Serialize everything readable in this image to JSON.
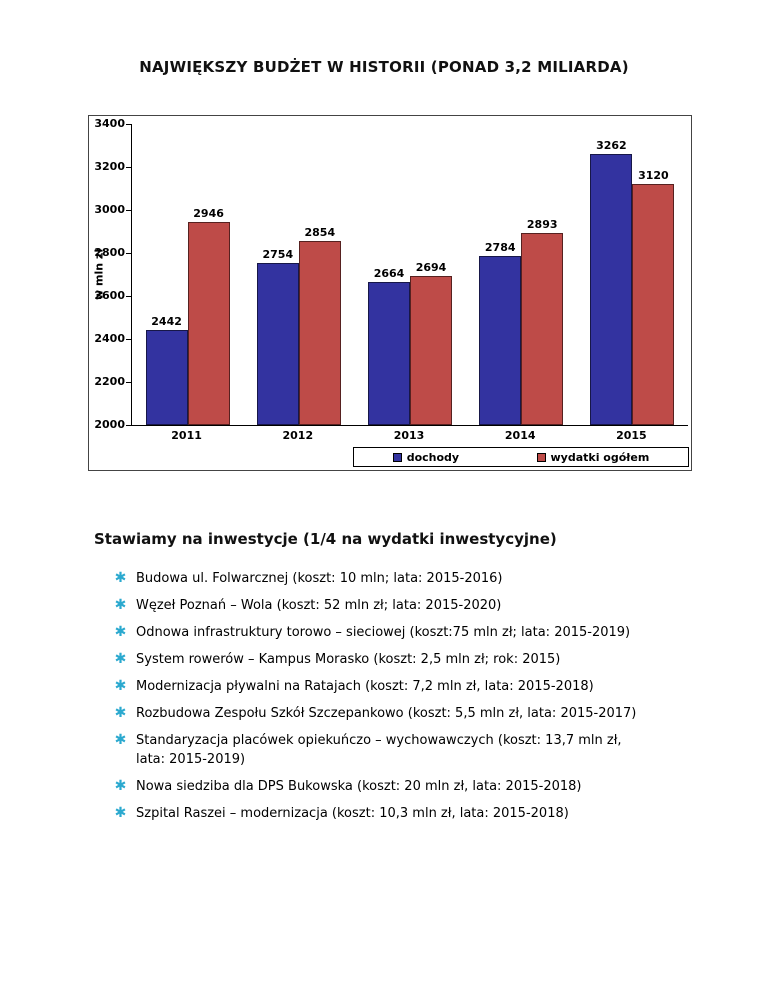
{
  "title": "NAJWIĘKSZY BUDŻET W HISTORII (PONAD 3,2 MILIARDA)",
  "chart_data": {
    "type": "bar",
    "title": "",
    "categories": [
      "2011",
      "2012",
      "2013",
      "2014",
      "2015"
    ],
    "series": [
      {
        "name": "dochody",
        "color": "#3333A0",
        "values": [
          2442,
          2754,
          2664,
          2784,
          3262
        ]
      },
      {
        "name": "wydatki ogółem",
        "color": "#BE4B48",
        "values": [
          2946,
          2854,
          2694,
          2893,
          3120
        ]
      }
    ],
    "xlabel": "",
    "ylabel": "w mln zł",
    "ylim": [
      2000,
      3400
    ],
    "ytick_step": 200,
    "grid": false,
    "legend_position": "bottom-inside",
    "value_labels": true
  },
  "investments": {
    "heading": "Stawiamy na inwestycje (1/4 na wydatki inwestycyjne)",
    "bullet_icon": "asterisk-star",
    "bullet_color": "#2BA9CF",
    "items": [
      "Budowa ul. Folwarcznej (koszt: 10 mln; lata: 2015-2016)",
      "Węzeł Poznań – Wola (koszt: 52 mln zł; lata: 2015-2020)",
      "Odnowa infrastruktury torowo – sieciowej (koszt:75 mln zł; lata: 2015-2019)",
      "System rowerów – Kampus Morasko (koszt: 2,5 mln zł; rok: 2015)",
      "Modernizacja pływalni na Ratajach (koszt: 7,2 mln zł, lata: 2015-2018)",
      "Rozbudowa Zespołu Szkół Szczepankowo (koszt: 5,5 mln zł, lata: 2015-2017)",
      "Standaryzacja placówek opiekuńczo – wychowawczych (koszt: 13,7 mln zł,\nlata: 2015-2019)",
      "Nowa siedziba dla DPS Bukowska (koszt: 20 mln zł, lata: 2015-2018)",
      "Szpital Raszei – modernizacja (koszt: 10,3 mln zł, lata: 2015-2018)"
    ]
  }
}
